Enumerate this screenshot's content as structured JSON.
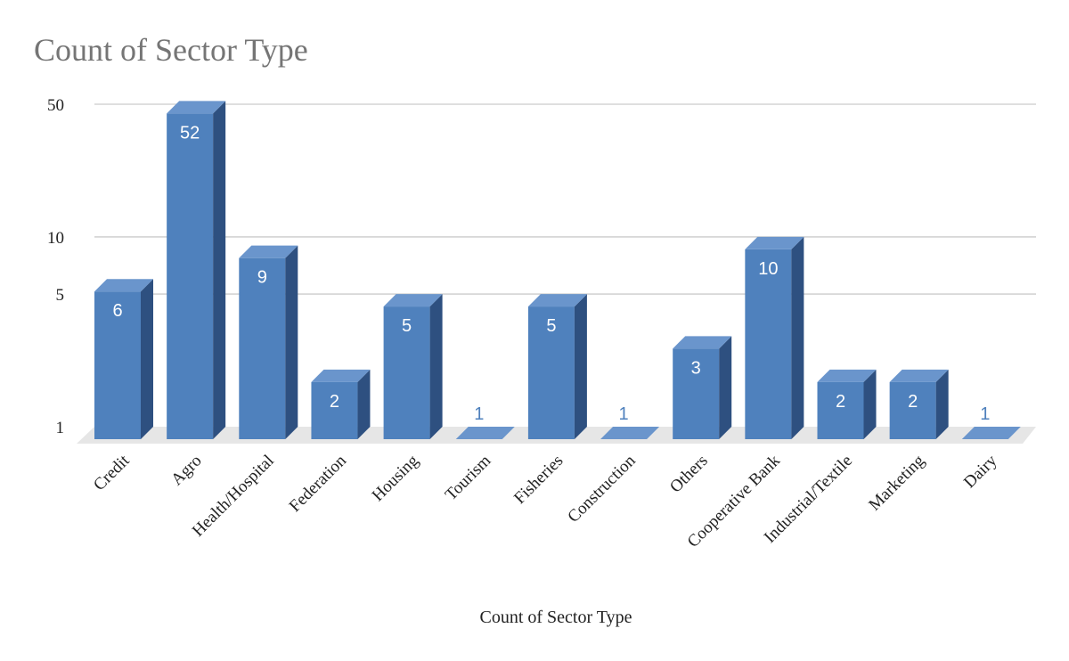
{
  "chart_data": {
    "type": "bar",
    "title": "Count of Sector Type",
    "xlabel": "Count of Sector Type",
    "ylabel": "",
    "y_scale": "log",
    "ylim": [
      1,
      50
    ],
    "y_ticks": [
      1,
      5,
      10,
      50
    ],
    "grid": true,
    "style": "3d",
    "categories": [
      "Credit",
      "Agro",
      "Health/Hospital",
      "Federation",
      "Housing",
      "Tourism",
      "Fisheries",
      "Construction",
      "Others",
      "Cooperative Bank",
      "Industrial/Textile",
      "Marketing",
      "Dairy"
    ],
    "values": [
      6,
      52,
      9,
      2,
      5,
      1,
      5,
      1,
      3,
      10,
      2,
      2,
      1
    ],
    "colors": {
      "bar_front": "#4f81bd",
      "bar_side": "#2e5080",
      "bar_top": "#6a95cc",
      "floor": "#e6e6e6",
      "grid": "#cccccc",
      "title": "#757575"
    }
  }
}
